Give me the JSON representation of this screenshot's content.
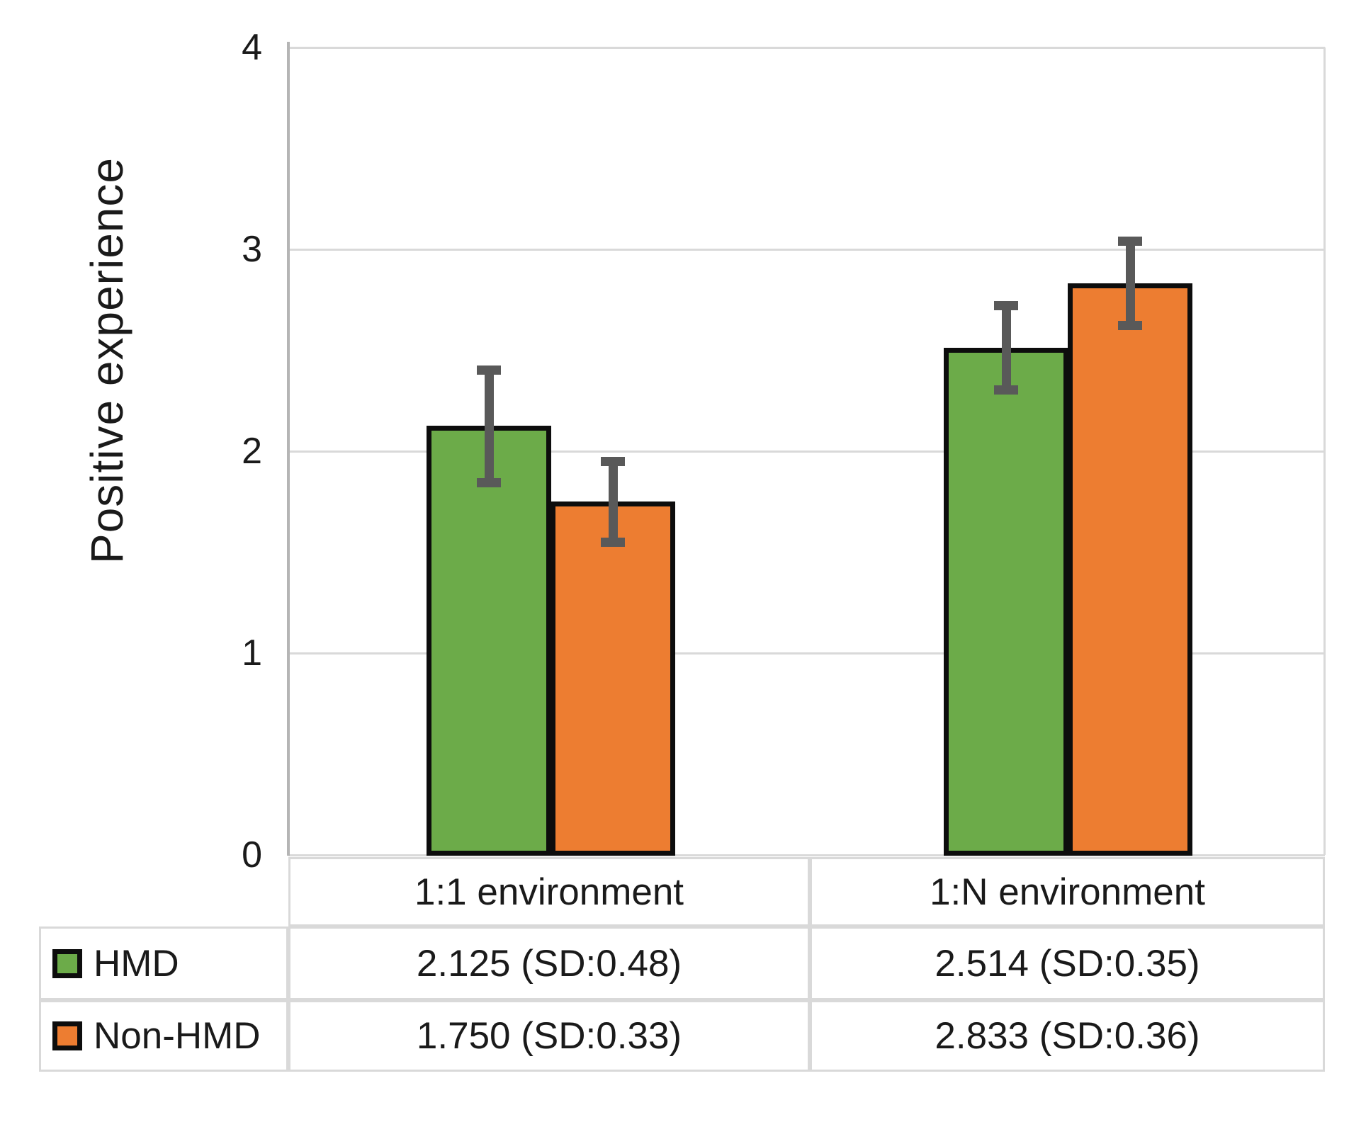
{
  "chart_data": {
    "type": "bar",
    "title": "",
    "ylabel": "Positive experience",
    "xlabel": "",
    "ylim": [
      0,
      4
    ],
    "y_ticks": [
      0,
      1,
      2,
      3,
      4
    ],
    "grid": true,
    "legend_position": "bottom-left-table",
    "categories": [
      "1:1 environment",
      "1:N environment"
    ],
    "series": [
      {
        "name": "HMD",
        "color": "#6CAB49",
        "values": [
          2.125,
          2.514
        ],
        "sd": [
          0.48,
          0.35
        ],
        "error_bar_half": [
          0.28,
          0.21
        ]
      },
      {
        "name": "Non-HMD",
        "color": "#ED7D31",
        "values": [
          1.75,
          2.833
        ],
        "sd": [
          0.33,
          0.36
        ],
        "error_bar_half": [
          0.2,
          0.21
        ]
      }
    ],
    "colors": {
      "error_bar": "#595959",
      "gridline": "#d9d9d9",
      "axis_line": "#b5b5b5",
      "bar_border": "#0d0d0d",
      "table_border": "#d9d9d9",
      "text": "#1a1a1a",
      "background": "#ffffff"
    }
  },
  "table": {
    "column_headers": [
      "1:1 environment",
      "1:N environment"
    ],
    "rows": [
      {
        "legend": "HMD",
        "swatch_color": "#6CAB49",
        "cells": [
          "2.125 (SD:0.48)",
          "2.514 (SD:0.35)"
        ]
      },
      {
        "legend": "Non-HMD",
        "swatch_color": "#ED7D31",
        "cells": [
          "1.750 (SD:0.33)",
          "2.833 (SD:0.36)"
        ]
      }
    ]
  }
}
